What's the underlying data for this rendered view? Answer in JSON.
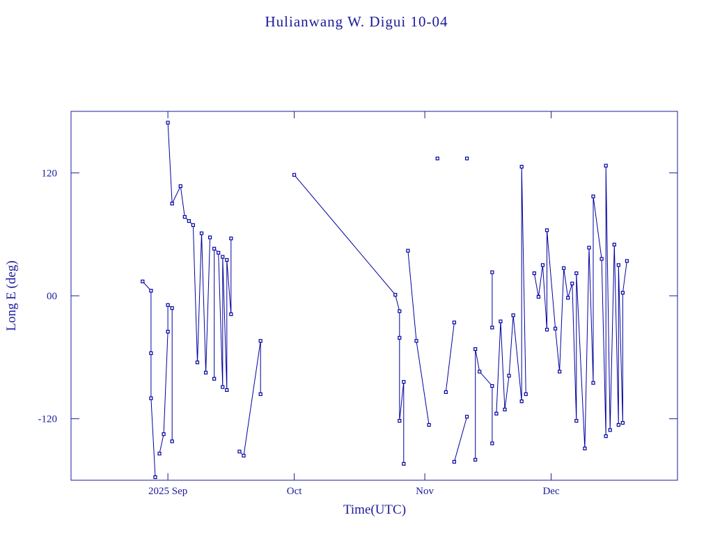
{
  "chart_data": {
    "type": "line",
    "title": "Hulianwang W. Digui 10-04",
    "x_label": "Time(UTC)",
    "y_label": "Long E (deg)",
    "xlim": [
      "2025-08-09",
      "2025-12-31"
    ],
    "xticks": [
      {
        "value": "2025-09-01",
        "label": "2025 Sep"
      },
      {
        "value": "2025-10-01",
        "label": "Oct"
      },
      {
        "value": "2025-11-01",
        "label": "Nov"
      },
      {
        "value": "2025-12-01",
        "label": "Dec"
      }
    ],
    "ylim": [
      -180,
      180
    ],
    "yticks": [
      -120,
      {
        "value": 0,
        "label": "00"
      },
      120
    ],
    "color": "#0000a0",
    "x": [
      "2025-08-26",
      "2025-08-28",
      "2025-08-28",
      "2025-08-28",
      "2025-08-29",
      null,
      "2025-08-30",
      "2025-08-31",
      "2025-09-01",
      "2025-09-01",
      "2025-09-02",
      "2025-09-02",
      null,
      "2025-09-01",
      "2025-09-02",
      "2025-09-04",
      "2025-09-05",
      "2025-09-06",
      "2025-09-07",
      "2025-09-08",
      "2025-09-09",
      "2025-09-10",
      "2025-09-11",
      null,
      "2025-09-12",
      "2025-09-12",
      "2025-09-13",
      "2025-09-14",
      "2025-09-14",
      "2025-09-15",
      "2025-09-15",
      "2025-09-16",
      "2025-09-16",
      null,
      "2025-09-18",
      "2025-09-19",
      "2025-09-23",
      "2025-09-23",
      null,
      "2025-10-01",
      "2025-10-25",
      "2025-10-26",
      "2025-10-26",
      "2025-10-26",
      "2025-10-27",
      "2025-10-27",
      null,
      "2025-10-28",
      "2025-10-30",
      "2025-11-02",
      null,
      "2025-11-04",
      null,
      "2025-11-06",
      "2025-11-08",
      null,
      "2025-11-08",
      "2025-11-11",
      null,
      "2025-11-11",
      null,
      "2025-11-13",
      "2025-11-13",
      "2025-11-14",
      "2025-11-17",
      "2025-11-17",
      null,
      "2025-11-17",
      "2025-11-17",
      null,
      "2025-11-18",
      "2025-11-19",
      "2025-11-20",
      "2025-11-21",
      "2025-11-22",
      "2025-11-24",
      "2025-11-24",
      "2025-11-25",
      null,
      "2025-11-27",
      "2025-11-28",
      "2025-11-29",
      "2025-11-30",
      "2025-11-30",
      "2025-12-02",
      "2025-12-03",
      "2025-12-04",
      "2025-12-05",
      "2025-12-06",
      "2025-12-07",
      "2025-12-07",
      "2025-12-09",
      "2025-12-10",
      "2025-12-11",
      "2025-12-11",
      "2025-12-13",
      "2025-12-14",
      "2025-12-14",
      "2025-12-15",
      "2025-12-16",
      "2025-12-17",
      "2025-12-17",
      "2025-12-18",
      "2025-12-18",
      "2025-12-19"
    ],
    "values": [
      14,
      5,
      -56,
      -100,
      -177,
      null,
      -154,
      -135,
      -35,
      -9,
      -12,
      -142,
      null,
      169,
      90,
      107,
      77,
      73,
      69,
      -65,
      61,
      -75,
      57,
      null,
      -81,
      46,
      42,
      -89,
      38,
      -92,
      35,
      -18,
      56,
      null,
      -152,
      -156,
      -44,
      -96,
      null,
      118,
      1,
      -15,
      -41,
      -122,
      -84,
      -164,
      null,
      44,
      -44,
      -126,
      null,
      134,
      null,
      -94,
      -26,
      null,
      -162,
      -118,
      null,
      134,
      null,
      -160,
      -52,
      -74,
      -88,
      -144,
      null,
      23,
      -31,
      null,
      -115,
      -25,
      -111,
      -78,
      -19,
      -103,
      126,
      -96,
      null,
      22,
      -1,
      30,
      -33,
      64,
      -32,
      -74,
      27,
      -2,
      12,
      -122,
      22,
      -149,
      47,
      -85,
      97,
      36,
      -137,
      127,
      -131,
      50,
      -126,
      30,
      -124,
      3,
      34
    ]
  }
}
